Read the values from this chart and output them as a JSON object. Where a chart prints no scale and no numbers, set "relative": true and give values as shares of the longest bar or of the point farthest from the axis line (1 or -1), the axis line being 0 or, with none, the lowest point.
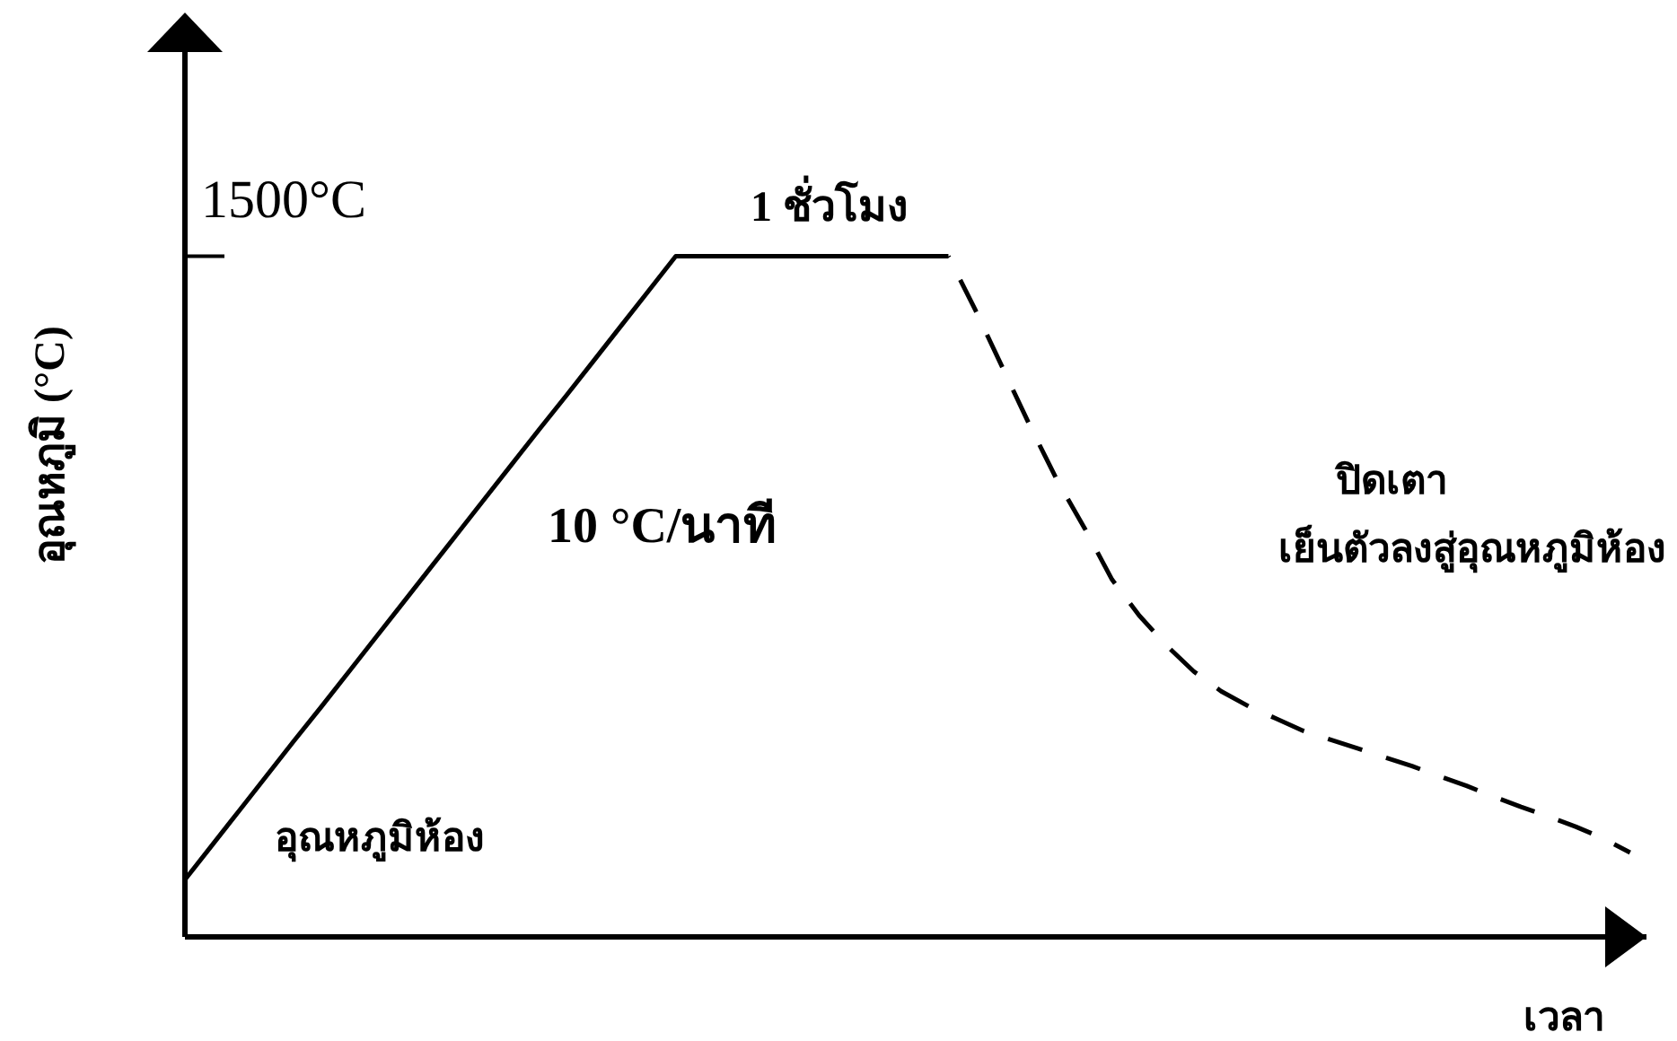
{
  "chart_data": {
    "type": "line",
    "relative": true,
    "marker": "none",
    "xlabel": "เวลา",
    "ylabel": "อุณหภูมิ (°C)",
    "categories": [
      null,
      null,
      null,
      null,
      null,
      null,
      null,
      null,
      null,
      null,
      null,
      null,
      null,
      null,
      null,
      null,
      null,
      null,
      null,
      null,
      null,
      null,
      null,
      null,
      null,
      null,
      null,
      null,
      null,
      null,
      null,
      null,
      null,
      null,
      null,
      null,
      null,
      null,
      null,
      null,
      null,
      null,
      null,
      null,
      null,
      null,
      null,
      null,
      null,
      null,
      null,
      null,
      null,
      null
    ],
    "series": [
      {
        "color": "#000000",
        "line_style": "solid",
        "values": [
          0.084,
          0.135,
          0.186,
          0.237,
          0.288,
          0.338,
          0.389,
          0.44,
          0.491,
          0.542,
          0.593,
          0.644,
          0.695,
          0.746,
          0.796,
          0.847,
          0.898,
          0.949,
          1,
          1,
          1,
          1,
          1,
          1,
          1,
          1,
          1,
          1,
          1,
          null,
          null,
          null,
          null,
          null,
          null,
          null,
          null,
          null,
          null,
          null,
          null,
          null,
          null,
          null,
          null,
          null,
          null,
          null,
          null,
          null,
          null,
          null,
          null,
          null
        ]
      },
      {
        "color": "#000000",
        "line_style": "dashed",
        "values": [
          null,
          null,
          null,
          null,
          null,
          null,
          null,
          null,
          null,
          null,
          null,
          null,
          null,
          null,
          null,
          null,
          null,
          null,
          null,
          null,
          null,
          null,
          null,
          null,
          null,
          null,
          null,
          null,
          1,
          0.92,
          0.835,
          0.75,
          0.67,
          0.6,
          0.525,
          0.472,
          0.428,
          0.39,
          0.361,
          0.339,
          0.321,
          0.303,
          0.29,
          0.277,
          0.264,
          0.251,
          0.236,
          0.222,
          0.206,
          0.191,
          0.177,
          0.162,
          0.145,
          0.124
        ]
      }
    ],
    "annotations": [
      "1500°C",
      "1 ชั่วโมง",
      "10 °C/นาที",
      "ปิดเตา",
      "เย็นตัวลงสู่อุณหภูมิห้อง",
      "อุณหภูมิห้อง"
    ]
  }
}
